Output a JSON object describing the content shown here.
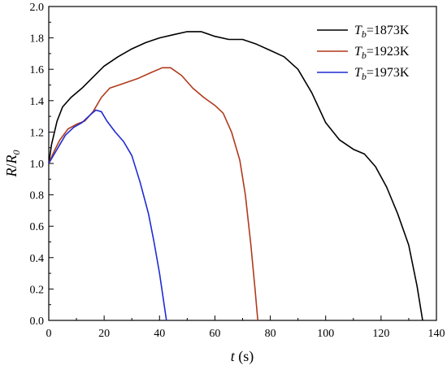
{
  "chart_data": {
    "type": "line",
    "xlabel": {
      "var": "t",
      "unit": " (s)"
    },
    "ylabel": {
      "num": "R",
      "sep": "/",
      "den": "R",
      "den_sub": "0"
    },
    "xlim": [
      0,
      140
    ],
    "ylim": [
      0.0,
      2.0
    ],
    "x_ticks": [
      0,
      20,
      40,
      60,
      80,
      100,
      120,
      140
    ],
    "y_ticks": [
      "0.0",
      "0.2",
      "0.4",
      "0.6",
      "0.8",
      "1.0",
      "1.2",
      "1.4",
      "1.6",
      "1.8",
      "2.0"
    ],
    "grid": false,
    "legend": {
      "placement": "top-right",
      "var": "T",
      "sub": "b"
    },
    "series": [
      {
        "name": "=1873K",
        "color": "#000000",
        "points": [
          [
            0,
            1.0
          ],
          [
            1,
            1.12
          ],
          [
            3,
            1.27
          ],
          [
            5,
            1.36
          ],
          [
            8,
            1.42
          ],
          [
            12,
            1.48
          ],
          [
            16,
            1.55
          ],
          [
            20,
            1.62
          ],
          [
            25,
            1.68
          ],
          [
            30,
            1.73
          ],
          [
            35,
            1.77
          ],
          [
            40,
            1.8
          ],
          [
            45,
            1.82
          ],
          [
            50,
            1.84
          ],
          [
            55,
            1.84
          ],
          [
            60,
            1.81
          ],
          [
            65,
            1.79
          ],
          [
            70,
            1.79
          ],
          [
            75,
            1.76
          ],
          [
            80,
            1.72
          ],
          [
            85,
            1.68
          ],
          [
            90,
            1.6
          ],
          [
            95,
            1.45
          ],
          [
            100,
            1.26
          ],
          [
            105,
            1.15
          ],
          [
            110,
            1.09
          ],
          [
            114,
            1.06
          ],
          [
            118,
            0.98
          ],
          [
            122,
            0.85
          ],
          [
            126,
            0.68
          ],
          [
            130,
            0.48
          ],
          [
            133,
            0.22
          ],
          [
            135,
            0.0
          ]
        ]
      },
      {
        "name": "=1923K",
        "color": "#b03a1c",
        "points": [
          [
            0,
            1.0
          ],
          [
            2,
            1.08
          ],
          [
            4,
            1.15
          ],
          [
            7,
            1.22
          ],
          [
            10,
            1.25
          ],
          [
            13,
            1.27
          ],
          [
            16,
            1.33
          ],
          [
            19,
            1.42
          ],
          [
            22,
            1.48
          ],
          [
            27,
            1.51
          ],
          [
            32,
            1.54
          ],
          [
            37,
            1.58
          ],
          [
            41,
            1.61
          ],
          [
            44,
            1.61
          ],
          [
            48,
            1.56
          ],
          [
            52,
            1.48
          ],
          [
            56,
            1.42
          ],
          [
            60,
            1.37
          ],
          [
            63,
            1.32
          ],
          [
            66,
            1.2
          ],
          [
            69,
            1.02
          ],
          [
            71,
            0.8
          ],
          [
            73,
            0.48
          ],
          [
            74.5,
            0.2
          ],
          [
            75.5,
            0.0
          ]
        ]
      },
      {
        "name": "=1973K",
        "color": "#1f2bd1",
        "points": [
          [
            0,
            1.0
          ],
          [
            2,
            1.06
          ],
          [
            4,
            1.12
          ],
          [
            6,
            1.18
          ],
          [
            9,
            1.23
          ],
          [
            12,
            1.26
          ],
          [
            15,
            1.31
          ],
          [
            17,
            1.34
          ],
          [
            19,
            1.33
          ],
          [
            21,
            1.27
          ],
          [
            24,
            1.2
          ],
          [
            27,
            1.14
          ],
          [
            30,
            1.05
          ],
          [
            33,
            0.88
          ],
          [
            36,
            0.68
          ],
          [
            38,
            0.5
          ],
          [
            40,
            0.3
          ],
          [
            41.5,
            0.12
          ],
          [
            42.5,
            0.0
          ]
        ]
      }
    ]
  }
}
